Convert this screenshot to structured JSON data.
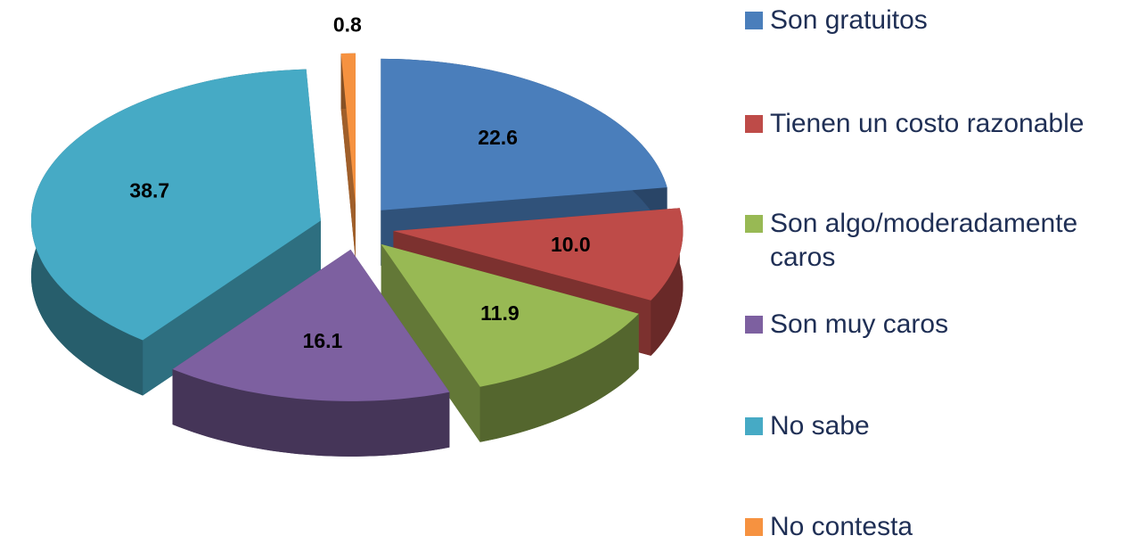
{
  "chart_data": {
    "type": "pie",
    "categories": [
      "Son gratuitos",
      "Tienen un costo razonable",
      "Son algo/moderadamente caros",
      "Son muy caros",
      "No sabe",
      "No contesta"
    ],
    "values": [
      22.6,
      10.0,
      11.9,
      16.1,
      38.7,
      0.8
    ],
    "value_labels": [
      "22.6",
      "10.0",
      "11.9",
      "16.1",
      "38.7",
      "0.8"
    ],
    "colors": [
      "#4a7ebb",
      "#be4b48",
      "#98b954",
      "#7d60a0",
      "#46aac5",
      "#f69240"
    ],
    "legend": "right"
  }
}
